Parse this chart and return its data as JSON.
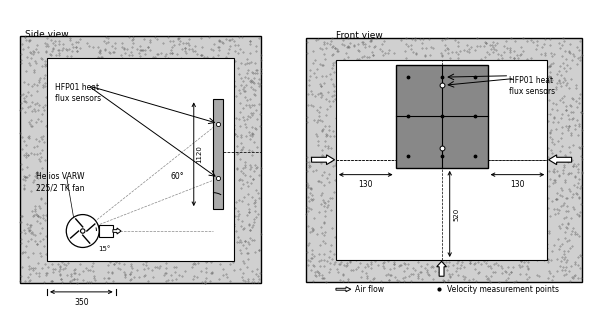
{
  "bg_color": "#ffffff",
  "concrete_color": "#d0d0d0",
  "stipple_color": "#777777",
  "inner_color": "#ffffff",
  "sensor_color": "#aaaaaa",
  "plate_color": "#888888",
  "title_side": "Side view",
  "title_front": "Front view",
  "label_hfp01_side": "HFP01 heat\nflux sensors",
  "label_helios": "Helios VARW\n225/2 TK fan",
  "label_hfp01_front": "HFP01 heat\nflux sensors",
  "label_airflow": "Air flow",
  "label_velocity": "Velocity measurement points",
  "dim_350": "350",
  "dim_1120": "1120",
  "dim_60": "60°",
  "dim_15": "15°",
  "dim_130_left": "130",
  "dim_130_right": "130",
  "dim_520": "520"
}
